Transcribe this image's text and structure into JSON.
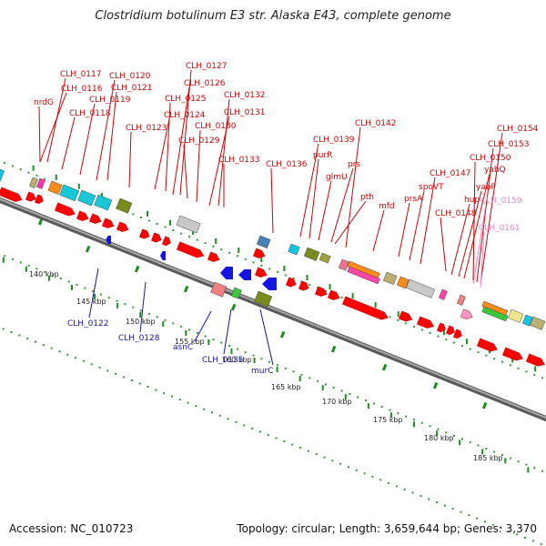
{
  "title": "Clostridium botulinum E3 str. Alaska E43, complete genome",
  "footer": {
    "accession": "Accession: NC_010723",
    "summary": "Topology: circular; Length: 3,659,644 bp; Genes: 3,370"
  },
  "colors": {
    "backbone": "#7f7f7f",
    "label_top": "#d40000",
    "label_bottom": "#1414b4",
    "label_pink": "#ee82c8",
    "tick": "#1e8c1e",
    "forward_cds": "#ff0000",
    "reverse_cds": "#1414e6"
  },
  "scale_labels": [
    "140 kbp",
    "145 kbp",
    "150 kbp",
    "155 kbp",
    "160 kbp",
    "165 kbp",
    "170 kbp",
    "175 kbp",
    "180 kbp",
    "185 kbp"
  ],
  "top_labels": [
    "CLH_0117",
    "CLH_0116",
    "nrdG",
    "CLH_0118",
    "CLH_0119",
    "CLH_0120",
    "CLH_0121",
    "CLH_0123",
    "CLH_0124",
    "CLH_0125",
    "CLH_0126",
    "CLH_0127",
    "CLH_0129",
    "CLH_0130",
    "CLH_0131",
    "CLH_0132",
    "CLH_0133",
    "CLH_0136",
    "CLH_0139",
    "purR",
    "glmU",
    "prs",
    "pth",
    "CLH_0142",
    "mfd",
    "prsA",
    "spoVT",
    "CLH_0147",
    "CLH_0148",
    "hup",
    "yabP",
    "yabQ",
    "CLH_0150",
    "CLH_0153",
    "CLH_0154",
    "CLH_0159",
    "CLH_0161"
  ],
  "bottom_labels": [
    "CLH_0122",
    "CLH_0128",
    "asnC",
    "CLH_0135",
    "murC"
  ]
}
